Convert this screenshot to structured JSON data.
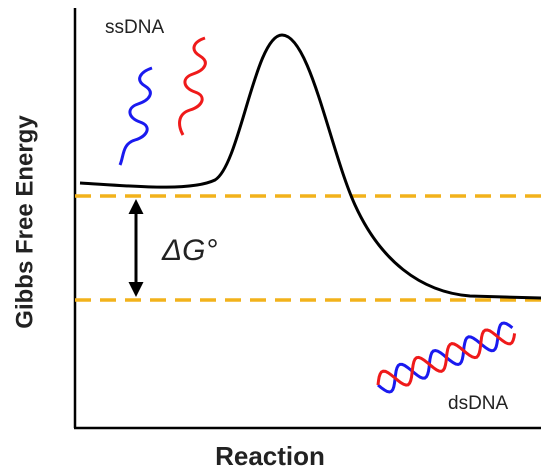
{
  "labels": {
    "ss": "ssDNA",
    "ds": "dsDNA",
    "delta": "ΔG°",
    "y_axis": "Gibbs Free Energy",
    "x_axis": "Reaction"
  }
}
